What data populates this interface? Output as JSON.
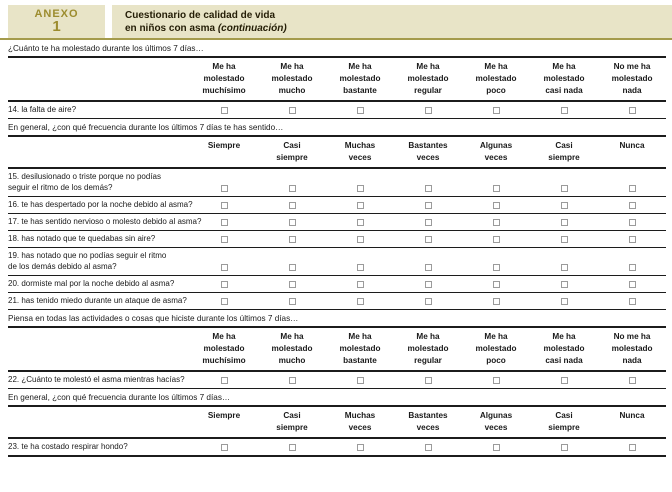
{
  "colors": {
    "accent": "#a49b4c",
    "bar-bg": "#e8e4c7",
    "annex-text": "#9c8c2e"
  },
  "header": {
    "annex_label": "ANEXO",
    "annex_number": "1",
    "title_line1": "Cuestionario de calidad de vida",
    "title_line2": "en niños con asma",
    "title_suffix": "(continuación)"
  },
  "options": {
    "severity": [
      "Me ha\nmolestado\nmuchísimo",
      "Me ha\nmolestado\nmucho",
      "Me ha\nmolestado\nbastante",
      "Me ha\nmolestado\nregular",
      "Me ha\nmolestado\npoco",
      "Me ha\nmolestado\ncasi nada",
      "No me ha\nmolestado\nnada"
    ],
    "frequency": [
      "Siempre",
      "Casi\nsiempre",
      "Muchas\nveces",
      "Bastantes\nveces",
      "Algunas\nveces",
      "Casi\nsiempre",
      "Nunca"
    ]
  },
  "table": {
    "segments": [
      {
        "type": "section",
        "text": "¿Cuánto te ha molestado durante los últimos 7 días…"
      },
      {
        "type": "options",
        "set": "severity"
      },
      {
        "type": "question",
        "text": "14. la falta de aire?"
      },
      {
        "type": "section",
        "text": "En general, ¿con qué frecuencia durante los últimos 7 días te has sentido…"
      },
      {
        "type": "options",
        "set": "frequency"
      },
      {
        "type": "question",
        "text": "15. desilusionado o triste porque no podías\nseguir el ritmo de los demás?"
      },
      {
        "type": "question",
        "text": "16. te has despertado por la noche debido al asma?"
      },
      {
        "type": "question",
        "text": "17. te has sentido nervioso o molesto debido al asma?"
      },
      {
        "type": "question",
        "text": "18. has notado que te quedabas sin aire?"
      },
      {
        "type": "question",
        "text": "19. has notado que no podías seguir el ritmo\nde los demás debido al asma?"
      },
      {
        "type": "question",
        "text": "20. dormiste mal por la noche debido al asma?"
      },
      {
        "type": "question",
        "text": "21. has tenido miedo durante un ataque de asma?"
      },
      {
        "type": "section",
        "text": "Piensa en todas las actividades o cosas que hiciste durante los últimos 7 días…"
      },
      {
        "type": "options",
        "set": "severity"
      },
      {
        "type": "question",
        "text": "22. ¿Cuánto te molestó el asma mientras hacías?"
      },
      {
        "type": "section",
        "text": "En general, ¿con qué frecuencia durante los últimos 7 días…"
      },
      {
        "type": "options",
        "set": "frequency"
      },
      {
        "type": "question",
        "text": "23. te ha costado respirar hondo?"
      }
    ]
  }
}
